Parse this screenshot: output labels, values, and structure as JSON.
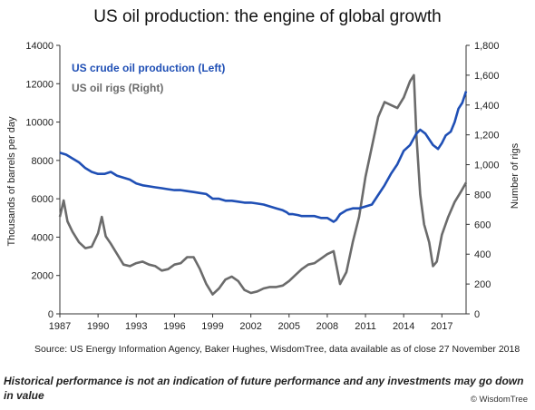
{
  "chart_data": {
    "type": "line",
    "title": "US oil production: the engine of global growth",
    "left_axis": {
      "label": "Thousands of barrels per day",
      "ticks": [
        "0",
        "2000",
        "4000",
        "6000",
        "8000",
        "10000",
        "12000",
        "14000"
      ],
      "range": [
        0,
        14000
      ]
    },
    "right_axis": {
      "label": "Number of rigs",
      "ticks": [
        "0",
        "200",
        "400",
        "600",
        "800",
        "1,000",
        "1,200",
        "1,400",
        "1,600",
        "1,800"
      ],
      "range": [
        0,
        1800
      ]
    },
    "x_axis": {
      "ticks": [
        "1987",
        "1990",
        "1993",
        "1996",
        "1999",
        "2002",
        "2005",
        "2008",
        "2011",
        "2014",
        "2017"
      ],
      "range": [
        1987,
        2018.9
      ]
    },
    "legend_position": "top-left",
    "grid": false,
    "series": [
      {
        "name": "US crude oil production (Left)",
        "axis": "left",
        "color": "#1f4fb5",
        "x": [
          1987,
          1987.5,
          1988,
          1988.5,
          1989,
          1989.5,
          1990,
          1990.5,
          1991,
          1991.5,
          1992,
          1992.5,
          1993,
          1993.5,
          1994,
          1994.5,
          1995,
          1995.5,
          1996,
          1996.5,
          1997,
          1997.5,
          1998,
          1998.5,
          1999,
          1999.5,
          2000,
          2000.5,
          2001,
          2001.5,
          2002,
          2002.5,
          2003,
          2003.5,
          2004,
          2004.5,
          2004.8,
          2005,
          2005.3,
          2005.7,
          2006,
          2006.5,
          2007,
          2007.5,
          2008,
          2008.5,
          2008.7,
          2009,
          2009.5,
          2010,
          2010.5,
          2011,
          2011.5,
          2012,
          2012.5,
          2013,
          2013.5,
          2014,
          2014.5,
          2015,
          2015.3,
          2015.7,
          2016,
          2016.3,
          2016.7,
          2017,
          2017.3,
          2017.7,
          2018,
          2018.3,
          2018.6,
          2018.9
        ],
        "values": [
          8400,
          8300,
          8100,
          7900,
          7600,
          7400,
          7300,
          7300,
          7400,
          7200,
          7100,
          7000,
          6800,
          6700,
          6650,
          6600,
          6550,
          6500,
          6450,
          6450,
          6400,
          6350,
          6300,
          6250,
          6000,
          6000,
          5900,
          5900,
          5850,
          5800,
          5800,
          5750,
          5700,
          5600,
          5500,
          5400,
          5300,
          5200,
          5200,
          5150,
          5100,
          5100,
          5100,
          5000,
          5000,
          4800,
          4900,
          5200,
          5400,
          5500,
          5500,
          5600,
          5700,
          6200,
          6700,
          7300,
          7800,
          8500,
          8800,
          9400,
          9600,
          9400,
          9100,
          8800,
          8600,
          8900,
          9300,
          9500,
          10000,
          10700,
          11000,
          11600
        ]
      },
      {
        "name": "US oil rigs (Right)",
        "axis": "right",
        "color": "#6b6b6b",
        "x": [
          1987,
          1987.3,
          1987.6,
          1988,
          1988.5,
          1989,
          1989.5,
          1990,
          1990.3,
          1990.6,
          1991,
          1991.5,
          1992,
          1992.5,
          1993,
          1993.5,
          1994,
          1994.5,
          1995,
          1995.5,
          1996,
          1996.5,
          1997,
          1997.5,
          1998,
          1998.5,
          1999,
          1999.5,
          2000,
          2000.5,
          2001,
          2001.5,
          2002,
          2002.5,
          2003,
          2003.5,
          2004,
          2004.5,
          2005,
          2005.5,
          2006,
          2006.5,
          2007,
          2007.5,
          2008,
          2008.5,
          2009,
          2009.5,
          2010,
          2010.5,
          2011,
          2011.5,
          2012,
          2012.5,
          2013,
          2013.5,
          2014,
          2014.5,
          2014.8,
          2015,
          2015.3,
          2015.6,
          2016,
          2016.3,
          2016.6,
          2017,
          2017.5,
          2018,
          2018.5,
          2018.9
        ],
        "values": [
          650,
          760,
          620,
          550,
          480,
          440,
          450,
          540,
          650,
          520,
          470,
          400,
          330,
          320,
          340,
          350,
          330,
          320,
          290,
          300,
          330,
          340,
          380,
          380,
          300,
          200,
          130,
          170,
          230,
          250,
          220,
          160,
          140,
          150,
          170,
          180,
          180,
          190,
          220,
          260,
          300,
          330,
          340,
          370,
          400,
          420,
          200,
          280,
          480,
          650,
          920,
          1120,
          1320,
          1420,
          1400,
          1380,
          1450,
          1560,
          1600,
          1200,
          800,
          600,
          480,
          320,
          350,
          530,
          650,
          750,
          820,
          880
        ]
      }
    ]
  },
  "source_text": "Source: US Energy Information Agency, Baker Hughes, WisdomTree, data available as of close 27 November 2018",
  "disclaimer_text": "Historical performance is not an indication of future performance and any investments may go down in value",
  "credit_text": "© WisdomTree"
}
